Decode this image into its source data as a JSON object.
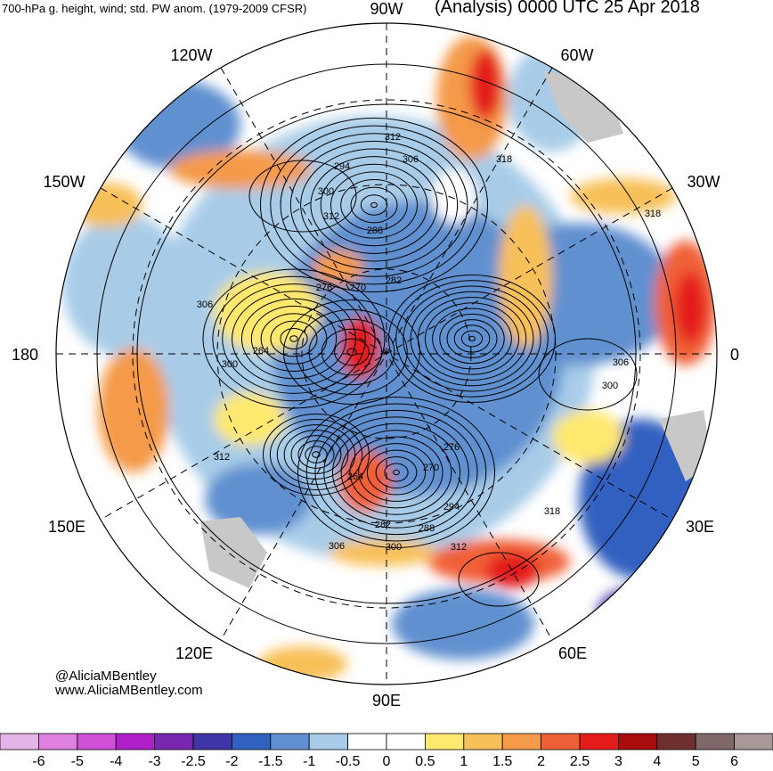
{
  "header": {
    "left_title": "700-hPa g. height, wind; std. PW anom. (1979-2009 CFSR)",
    "right_title": "(Analysis) 0000 UTC 25 Apr 2018"
  },
  "credits": {
    "handle": "@AliciaMBentley",
    "website": "www.AliciaMBentley.com"
  },
  "longitude_labels": {
    "top": "90W",
    "top_left_1": "120W",
    "top_right_1": "60W",
    "left_upper": "150W",
    "right_upper": "30W",
    "left": "180",
    "right": "0",
    "left_lower": "150E",
    "right_lower": "30E",
    "bottom_left_1": "120E",
    "bottom_right_1": "60E",
    "bottom": "90E"
  },
  "height_contour_labels": [
    "312",
    "306",
    "294",
    "318",
    "300",
    "312",
    "288",
    "276",
    "270",
    "282",
    "306",
    "264",
    "300",
    "306",
    "300",
    "312",
    "264",
    "270",
    "276",
    "282",
    "288",
    "294",
    "306",
    "300",
    "312",
    "318",
    "318"
  ],
  "colorbar": {
    "labels": [
      "-6",
      "-5",
      "-4",
      "-3",
      "-2.5",
      "-2",
      "-1.5",
      "-1",
      "-0.5",
      "0",
      "0.5",
      "1",
      "1.5",
      "2",
      "2.5",
      "3",
      "4",
      "5",
      "6"
    ],
    "colors": [
      "#e6b3e6",
      "#e080e0",
      "#d050d8",
      "#b020c8",
      "#7828b0",
      "#4035a8",
      "#3060c0",
      "#6090d0",
      "#a8cce8",
      "#ffffff",
      "#ffffff",
      "#ffe86e",
      "#f8c058",
      "#f49a48",
      "#f06038",
      "#e41c1c",
      "#a80c0c",
      "#703030",
      "#806868",
      "#a89898"
    ]
  },
  "colors": {
    "land": "#c8c8c8",
    "contour": "#000000",
    "graticule": "#000000"
  }
}
